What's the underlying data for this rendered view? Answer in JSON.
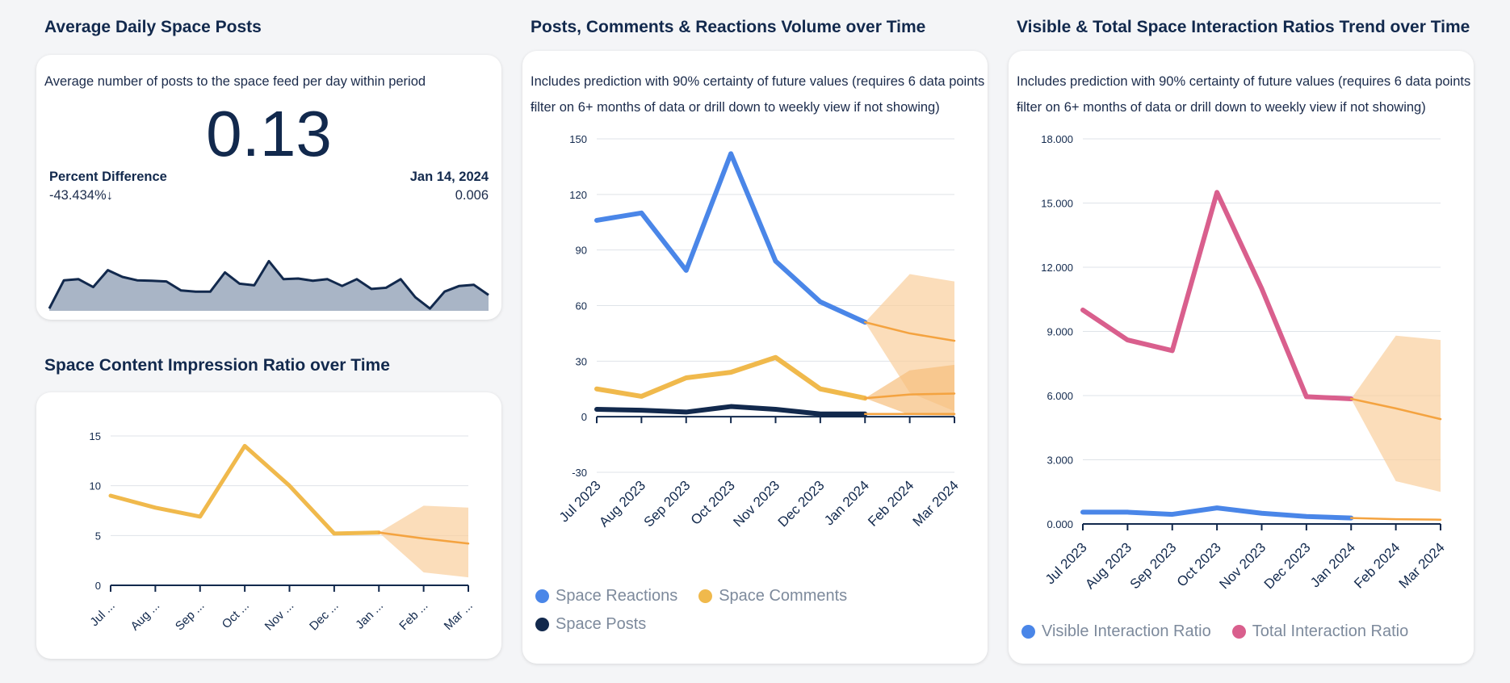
{
  "panels": {
    "kpi": {
      "title": "Average Daily Space Posts",
      "description": "Average number of posts to the space feed per day within period",
      "value": "0.13",
      "percent_label": "Percent Difference",
      "percent_value": "-43.434%↓",
      "date_label": "Jan 14, 2024",
      "date_value": "0.006"
    },
    "impression": {
      "title": "Space Content Impression Ratio over Time"
    },
    "volume": {
      "title": "Posts,  Comments & Reactions Volume over Time",
      "description_line1": "Includes prediction with 90% certainty of future values (requires 6 data points -",
      "description_line2": "filter on 6+ months of data or drill down to weekly view if not showing)"
    },
    "ratios": {
      "title": "Visible & Total Space Interaction Ratios Trend over Time",
      "description_line1": "Includes prediction with 90% certainty of future values (requires 6 data points -",
      "description_line2": "filter on 6+ months of data or drill down to weekly view if not showing)"
    }
  },
  "colors": {
    "navy": "#12294d",
    "blue": "#4a86e8",
    "yellow": "#f0b94c",
    "orange": "#f4a340",
    "band": "#f9cf9c",
    "pink": "#d95f8d",
    "spark_fill": "#a9b5c6"
  },
  "chart_data": [
    {
      "id": "sparkline",
      "type": "area",
      "values": [
        0.01,
        0.135,
        0.14,
        0.105,
        0.18,
        0.15,
        0.135,
        0.133,
        0.13,
        0.09,
        0.085,
        0.085,
        0.17,
        0.12,
        0.113,
        0.22,
        0.14,
        0.143,
        0.133,
        0.14,
        0.11,
        0.14,
        0.097,
        0.102,
        0.14,
        0.06,
        0.01,
        0.085,
        0.11,
        0.115,
        0.07
      ],
      "ylim": [
        0,
        0.25
      ]
    },
    {
      "id": "impression",
      "type": "line",
      "title": "Space Content Impression Ratio over Time",
      "categories": [
        "Jul ...",
        "Aug ...",
        "Sep ...",
        "Oct ...",
        "Nov ...",
        "Dec ...",
        "Jan ...",
        "Feb ...",
        "Mar ..."
      ],
      "yticks": [
        "0",
        "5",
        "10",
        "15"
      ],
      "ylim": [
        0,
        15
      ],
      "series": [
        {
          "name": "Impression Ratio",
          "color": "#f0b94c",
          "values": [
            9,
            7.8,
            6.9,
            14,
            10,
            5.2,
            5.3,
            null,
            null
          ]
        },
        {
          "name": "Forecast",
          "color": "#f4a340",
          "forecast": true,
          "values": [
            null,
            null,
            null,
            null,
            null,
            null,
            5.3,
            4.7,
            4.2
          ]
        }
      ],
      "bands": [
        {
          "color": "#f9cf9c",
          "lower": [
            null,
            null,
            null,
            null,
            null,
            null,
            5.3,
            1.3,
            0.8
          ],
          "upper": [
            null,
            null,
            null,
            null,
            null,
            null,
            5.3,
            8.0,
            7.8
          ]
        }
      ]
    },
    {
      "id": "volume",
      "type": "line",
      "title": "Posts,  Comments & Reactions Volume over Time",
      "categories": [
        "Jul 2023",
        "Aug 2023",
        "Sep 2023",
        "Oct 2023",
        "Nov 2023",
        "Dec 2023",
        "Jan 2024",
        "Feb 2024",
        "Mar 2024"
      ],
      "yticks": [
        "-30",
        "0",
        "30",
        "60",
        "90",
        "120",
        "150"
      ],
      "ylim": [
        -30,
        150
      ],
      "series": [
        {
          "name": "Space Reactions",
          "color": "#4a86e8",
          "values": [
            106,
            110,
            79,
            142,
            84,
            62,
            51,
            null,
            null
          ]
        },
        {
          "name": "Space Comments",
          "color": "#f0b94c",
          "values": [
            15,
            11,
            21,
            24,
            32,
            15,
            10,
            null,
            null
          ]
        },
        {
          "name": "Space Posts",
          "color": "#12294d",
          "values": [
            4,
            3.5,
            2.5,
            5.5,
            4,
            1.5,
            1.5,
            null,
            null
          ]
        },
        {
          "name": "Reactions Forecast",
          "color": "#f4a340",
          "forecast": true,
          "values": [
            null,
            null,
            null,
            null,
            null,
            null,
            51,
            45,
            41
          ]
        },
        {
          "name": "Comments Forecast",
          "color": "#f4a340",
          "forecast": true,
          "values": [
            null,
            null,
            null,
            null,
            null,
            null,
            10,
            12,
            12.5
          ]
        },
        {
          "name": "Posts Forecast",
          "color": "#f4a340",
          "forecast": true,
          "values": [
            null,
            null,
            null,
            null,
            null,
            null,
            1.5,
            1.5,
            1.5
          ]
        }
      ],
      "bands": [
        {
          "color": "#f9cf9c",
          "lower": [
            null,
            null,
            null,
            null,
            null,
            null,
            51,
            13,
            3
          ],
          "upper": [
            null,
            null,
            null,
            null,
            null,
            null,
            51,
            77,
            73
          ]
        },
        {
          "color": "#f6bf7e",
          "lower": [
            null,
            null,
            null,
            null,
            null,
            null,
            10,
            1,
            0.5
          ],
          "upper": [
            null,
            null,
            null,
            null,
            null,
            null,
            10,
            25,
            28
          ]
        }
      ],
      "legend": [
        "Space Reactions",
        "Space Comments",
        "Space Posts"
      ]
    },
    {
      "id": "ratios",
      "type": "line",
      "title": "Visible & Total Space Interaction Ratios Trend over Time",
      "categories": [
        "Jul 2023",
        "Aug 2023",
        "Sep 2023",
        "Oct 2023",
        "Nov 2023",
        "Dec 2023",
        "Jan 2024",
        "Feb 2024",
        "Mar 2024"
      ],
      "yticks": [
        "0.000",
        "3.000",
        "6.000",
        "9.000",
        "12.000",
        "15.000",
        "18.000"
      ],
      "ylim": [
        0,
        18
      ],
      "series": [
        {
          "name": "Visible Interaction Ratio",
          "color": "#4a86e8",
          "values": [
            0.55,
            0.55,
            0.45,
            0.75,
            0.5,
            0.35,
            0.28,
            null,
            null
          ]
        },
        {
          "name": "Total Interaction Ratio",
          "color": "#d95f8d",
          "values": [
            10,
            8.6,
            8.1,
            15.5,
            11,
            5.95,
            5.85,
            null,
            null
          ]
        },
        {
          "name": "Total Forecast",
          "color": "#f4a340",
          "forecast": true,
          "values": [
            null,
            null,
            null,
            null,
            null,
            null,
            5.85,
            5.4,
            4.9
          ]
        },
        {
          "name": "Visible Forecast",
          "color": "#f4a340",
          "forecast": true,
          "values": [
            null,
            null,
            null,
            null,
            null,
            null,
            0.28,
            0.22,
            0.2
          ]
        }
      ],
      "bands": [
        {
          "color": "#f9cf9c",
          "lower": [
            null,
            null,
            null,
            null,
            null,
            null,
            5.85,
            2.0,
            1.5
          ],
          "upper": [
            null,
            null,
            null,
            null,
            null,
            null,
            5.85,
            8.8,
            8.6
          ]
        }
      ],
      "legend": [
        "Visible Interaction Ratio",
        "Total Interaction Ratio"
      ]
    }
  ]
}
